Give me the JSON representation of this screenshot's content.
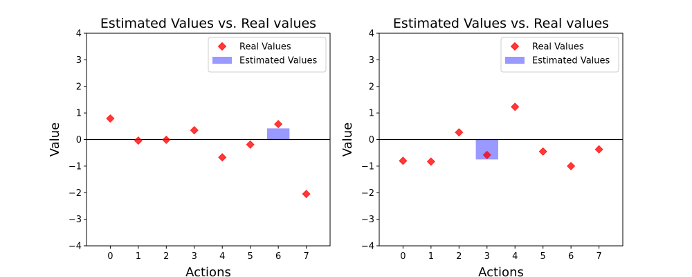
{
  "chart_data": [
    {
      "type": "bar",
      "title": "Estimated Values vs. Real values",
      "xlabel": "Actions",
      "ylabel": "Value",
      "categories": [
        "0",
        "1",
        "2",
        "3",
        "4",
        "5",
        "6",
        "7"
      ],
      "ylim": [
        -4,
        4
      ],
      "yticks": [
        "−4",
        "−3",
        "−2",
        "−1",
        "0",
        "1",
        "2",
        "3",
        "4"
      ],
      "legend_placement": "top-right",
      "grid": false,
      "series": [
        {
          "name": "Real Values",
          "kind": "scatter",
          "marker": "diamond",
          "color": "#ff0000",
          "values": [
            0.79,
            -0.04,
            -0.01,
            0.35,
            -0.67,
            -0.19,
            0.58,
            -2.05
          ]
        },
        {
          "name": "Estimated Values",
          "kind": "bar",
          "color": "#9999ff",
          "values": [
            null,
            null,
            null,
            null,
            null,
            null,
            0.42,
            null
          ]
        }
      ]
    },
    {
      "type": "bar",
      "title": "Estimated Values vs. Real values",
      "xlabel": "Actions",
      "ylabel": "Value",
      "categories": [
        "0",
        "1",
        "2",
        "3",
        "4",
        "5",
        "6",
        "7"
      ],
      "ylim": [
        -4,
        4
      ],
      "yticks": [
        "−4",
        "−3",
        "−2",
        "−1",
        "0",
        "1",
        "2",
        "3",
        "4"
      ],
      "legend_placement": "top-right",
      "grid": false,
      "series": [
        {
          "name": "Real Values",
          "kind": "scatter",
          "marker": "diamond",
          "color": "#ff0000",
          "values": [
            -0.8,
            -0.83,
            0.27,
            -0.58,
            1.23,
            -0.45,
            -1.0,
            -0.37
          ]
        },
        {
          "name": "Estimated Values",
          "kind": "bar",
          "color": "#9999ff",
          "values": [
            null,
            null,
            null,
            -0.75,
            null,
            null,
            null,
            null
          ]
        }
      ]
    }
  ]
}
